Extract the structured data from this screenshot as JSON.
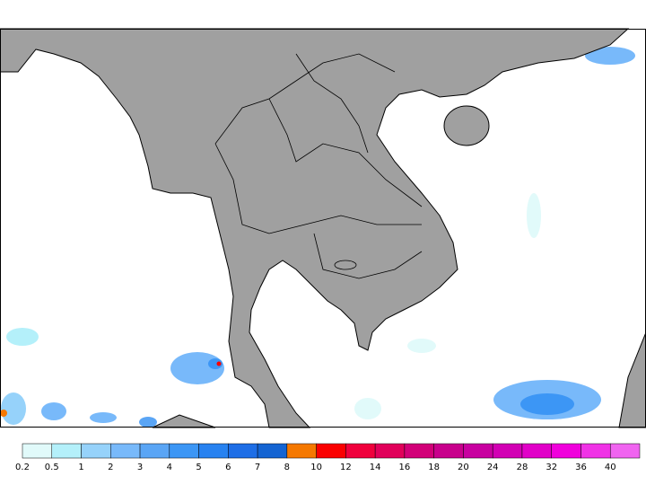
{
  "legend": {
    "levels": [
      0.2,
      0.5,
      1,
      2,
      3,
      4,
      5,
      6,
      7,
      8,
      10,
      12,
      14,
      16,
      18,
      20,
      24,
      28,
      32,
      36,
      40
    ],
    "colors": [
      "#e1fafa",
      "#b4f0fa",
      "#96d2fa",
      "#78b9fa",
      "#5aa5f5",
      "#3c96f5",
      "#2882f0",
      "#1e6ee6",
      "#1464d2",
      "#f57800",
      "#fa0000",
      "#f0003c",
      "#e1005a",
      "#d20078",
      "#c8008c",
      "#c800a0",
      "#d200b4",
      "#e100c8",
      "#f000dc",
      "#f032e6",
      "#f064f0"
    ]
  }
}
